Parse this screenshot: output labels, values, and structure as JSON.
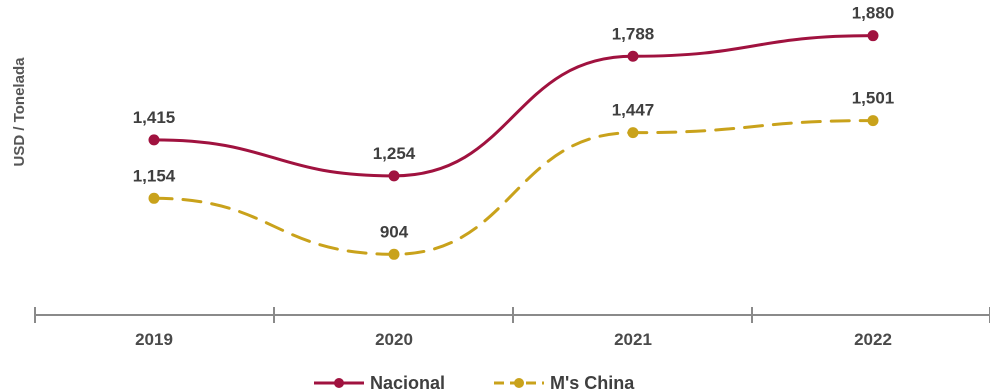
{
  "chart_data": {
    "type": "line",
    "categories": [
      "2019",
      "2020",
      "2021",
      "2022"
    ],
    "ylabel": "USD / Tonelada",
    "xlabel": "",
    "title": "",
    "ylim": [
      700,
      1950
    ],
    "grid": false,
    "legend_position": "bottom-center",
    "series": [
      {
        "name": "Nacional",
        "values": [
          1415,
          1254,
          1788,
          1880
        ],
        "labels": [
          "1,415",
          "1,254",
          "1,788",
          "1,880"
        ],
        "color": "#a0123f",
        "dash": false
      },
      {
        "name": "M's China",
        "values": [
          1154,
          904,
          1447,
          1501
        ],
        "labels": [
          "1,154",
          "904",
          "1,447",
          "1,501"
        ],
        "color": "#c9a21b",
        "dash": true
      }
    ]
  }
}
